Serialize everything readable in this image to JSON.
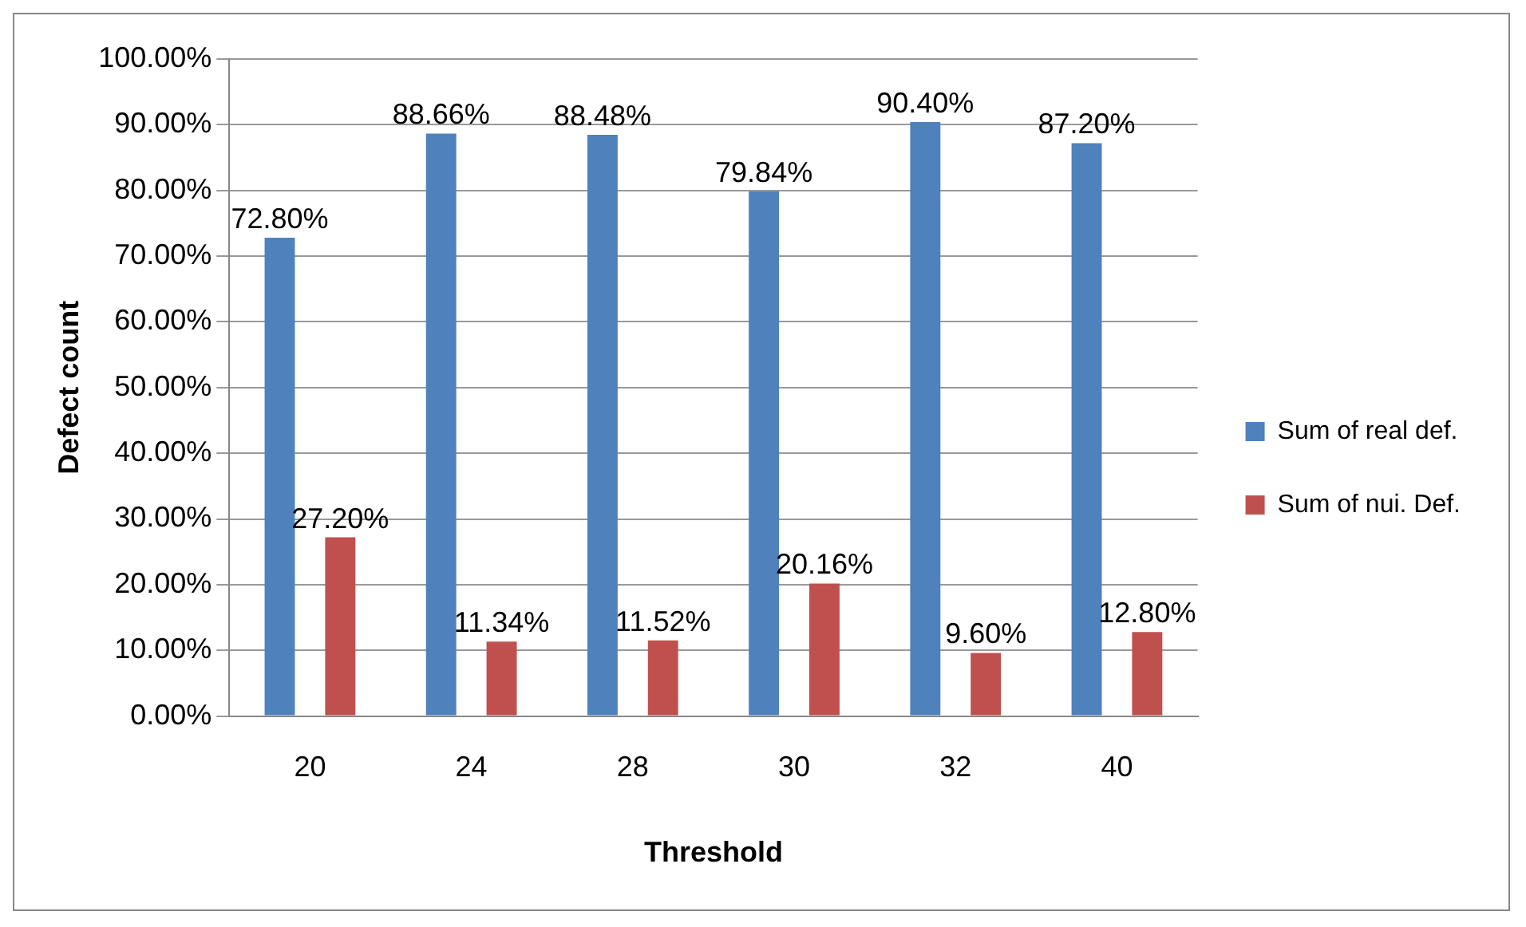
{
  "chart_data": {
    "type": "bar",
    "xlabel": "Threshold",
    "ylabel": "Defect count",
    "categories": [
      "20",
      "24",
      "28",
      "30",
      "32",
      "40"
    ],
    "series": [
      {
        "name": "Sum of real def.",
        "color": "#4f81bd",
        "values": [
          72.8,
          88.66,
          88.48,
          79.84,
          90.4,
          87.2
        ],
        "value_labels": [
          "72.80%",
          "88.66%",
          "88.48%",
          "79.84%",
          "90.40%",
          "87.20%"
        ]
      },
      {
        "name": "Sum of nui. Def.",
        "color": "#c0504d",
        "values": [
          27.2,
          11.34,
          11.52,
          20.16,
          9.6,
          12.8
        ],
        "value_labels": [
          "27.20%",
          "11.34%",
          "11.52%",
          "20.16%",
          "9.60%",
          "12.80%"
        ]
      }
    ],
    "ylim": [
      0,
      100
    ],
    "yticks": [
      {
        "value": 0,
        "label": "0.00%"
      },
      {
        "value": 10,
        "label": "10.00%"
      },
      {
        "value": 20,
        "label": "20.00%"
      },
      {
        "value": 30,
        "label": "30.00%"
      },
      {
        "value": 40,
        "label": "40.00%"
      },
      {
        "value": 50,
        "label": "50.00%"
      },
      {
        "value": 60,
        "label": "60.00%"
      },
      {
        "value": 70,
        "label": "70.00%"
      },
      {
        "value": 80,
        "label": "80.00%"
      },
      {
        "value": 90,
        "label": "90.00%"
      },
      {
        "value": 100,
        "label": "100.00%"
      }
    ],
    "grid": "y",
    "legend": "right"
  }
}
